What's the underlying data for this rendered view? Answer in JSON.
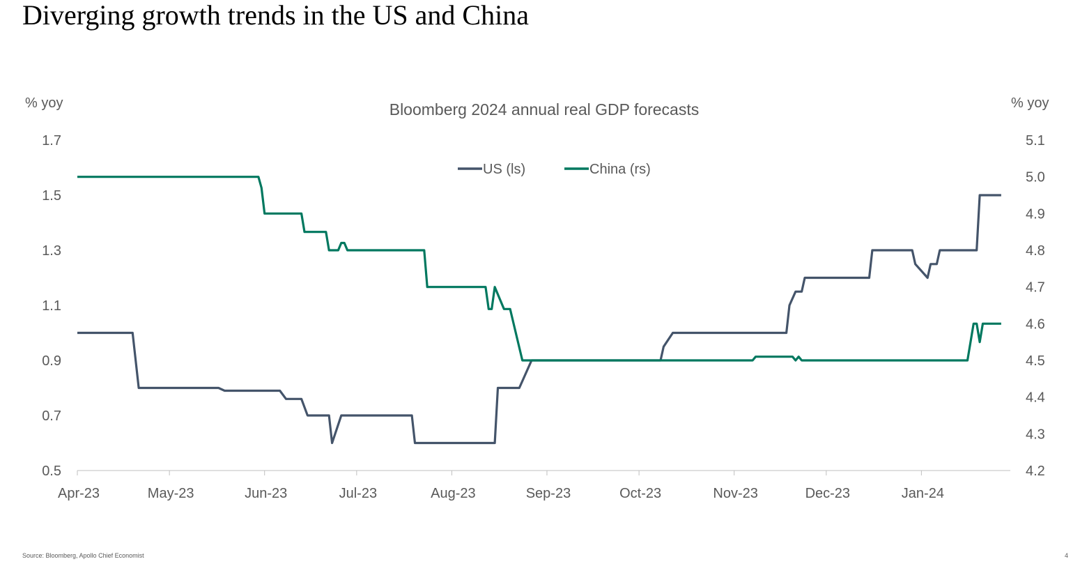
{
  "slide": {
    "title": "Diverging growth trends in the US and China",
    "source": "Source: Bloomberg, Apollo Chief Economist",
    "page_number": "4"
  },
  "chart_data": {
    "type": "line",
    "title": "Bloomberg 2024 annual real GDP forecasts",
    "y_left_label": "% yoy",
    "y_right_label": "% yoy",
    "y_left_ticks": [
      "0.5",
      "0.7",
      "0.9",
      "1.1",
      "1.3",
      "1.5",
      "1.7"
    ],
    "y_right_ticks": [
      "4.2",
      "4.3",
      "4.4",
      "4.5",
      "4.6",
      "4.7",
      "4.8",
      "4.9",
      "5.0",
      "5.1"
    ],
    "ylim_left": [
      0.5,
      1.7
    ],
    "ylim_right": [
      4.2,
      5.1
    ],
    "x_ticks": [
      "Apr-23",
      "May-23",
      "Jun-23",
      "Jul-23",
      "Aug-23",
      "Sep-23",
      "Oct-23",
      "Nov-23",
      "Dec-23",
      "Jan-24"
    ],
    "xlim": [
      "2023-04-01",
      "2024-01-31"
    ],
    "legend_position": "top-center",
    "grid": false,
    "series": [
      {
        "name": "US (ls)",
        "axis": "left",
        "color": "#44546A",
        "points": [
          [
            "2023-04-01",
            1.0
          ],
          [
            "2023-04-19",
            1.0
          ],
          [
            "2023-04-21",
            0.8
          ],
          [
            "2023-05-17",
            0.8
          ],
          [
            "2023-05-19",
            0.79
          ],
          [
            "2023-06-06",
            0.79
          ],
          [
            "2023-06-08",
            0.76
          ],
          [
            "2023-06-13",
            0.76
          ],
          [
            "2023-06-15",
            0.7
          ],
          [
            "2023-06-22",
            0.7
          ],
          [
            "2023-06-23",
            0.6
          ],
          [
            "2023-06-26",
            0.7
          ],
          [
            "2023-07-19",
            0.7
          ],
          [
            "2023-07-20",
            0.6
          ],
          [
            "2023-08-15",
            0.6
          ],
          [
            "2023-08-16",
            0.8
          ],
          [
            "2023-08-23",
            0.8
          ],
          [
            "2023-08-27",
            0.9
          ],
          [
            "2023-10-08",
            0.9
          ],
          [
            "2023-10-09",
            0.95
          ],
          [
            "2023-10-12",
            1.0
          ],
          [
            "2023-11-18",
            1.0
          ],
          [
            "2023-11-19",
            1.1
          ],
          [
            "2023-11-21",
            1.15
          ],
          [
            "2023-11-23",
            1.15
          ],
          [
            "2023-11-24",
            1.2
          ],
          [
            "2023-12-15",
            1.2
          ],
          [
            "2023-12-16",
            1.3
          ],
          [
            "2023-12-29",
            1.3
          ],
          [
            "2023-12-30",
            1.25
          ],
          [
            "2024-01-03",
            1.2
          ],
          [
            "2024-01-04",
            1.25
          ],
          [
            "2024-01-06",
            1.25
          ],
          [
            "2024-01-07",
            1.3
          ],
          [
            "2024-01-19",
            1.3
          ],
          [
            "2024-01-20",
            1.5
          ],
          [
            "2024-01-27",
            1.5
          ]
        ]
      },
      {
        "name": "China (rs)",
        "axis": "right",
        "color": "#00785F",
        "points": [
          [
            "2023-04-01",
            5.0
          ],
          [
            "2023-05-30",
            5.0
          ],
          [
            "2023-05-31",
            4.97
          ],
          [
            "2023-06-01",
            4.9
          ],
          [
            "2023-06-13",
            4.9
          ],
          [
            "2023-06-14",
            4.85
          ],
          [
            "2023-06-21",
            4.85
          ],
          [
            "2023-06-22",
            4.8
          ],
          [
            "2023-06-25",
            4.8
          ],
          [
            "2023-06-26",
            4.82
          ],
          [
            "2023-06-27",
            4.82
          ],
          [
            "2023-06-28",
            4.8
          ],
          [
            "2023-07-23",
            4.8
          ],
          [
            "2023-07-24",
            4.7
          ],
          [
            "2023-08-12",
            4.7
          ],
          [
            "2023-08-13",
            4.64
          ],
          [
            "2023-08-14",
            4.64
          ],
          [
            "2023-08-15",
            4.7
          ],
          [
            "2023-08-18",
            4.64
          ],
          [
            "2023-08-20",
            4.64
          ],
          [
            "2023-08-24",
            4.5
          ],
          [
            "2023-11-07",
            4.5
          ],
          [
            "2023-11-08",
            4.51
          ],
          [
            "2023-11-20",
            4.51
          ],
          [
            "2023-11-21",
            4.5
          ],
          [
            "2023-11-22",
            4.51
          ],
          [
            "2023-11-23",
            4.5
          ],
          [
            "2024-01-16",
            4.5
          ],
          [
            "2024-01-18",
            4.6
          ],
          [
            "2024-01-19",
            4.6
          ],
          [
            "2024-01-20",
            4.55
          ],
          [
            "2024-01-21",
            4.6
          ],
          [
            "2024-01-27",
            4.6
          ]
        ]
      }
    ]
  }
}
